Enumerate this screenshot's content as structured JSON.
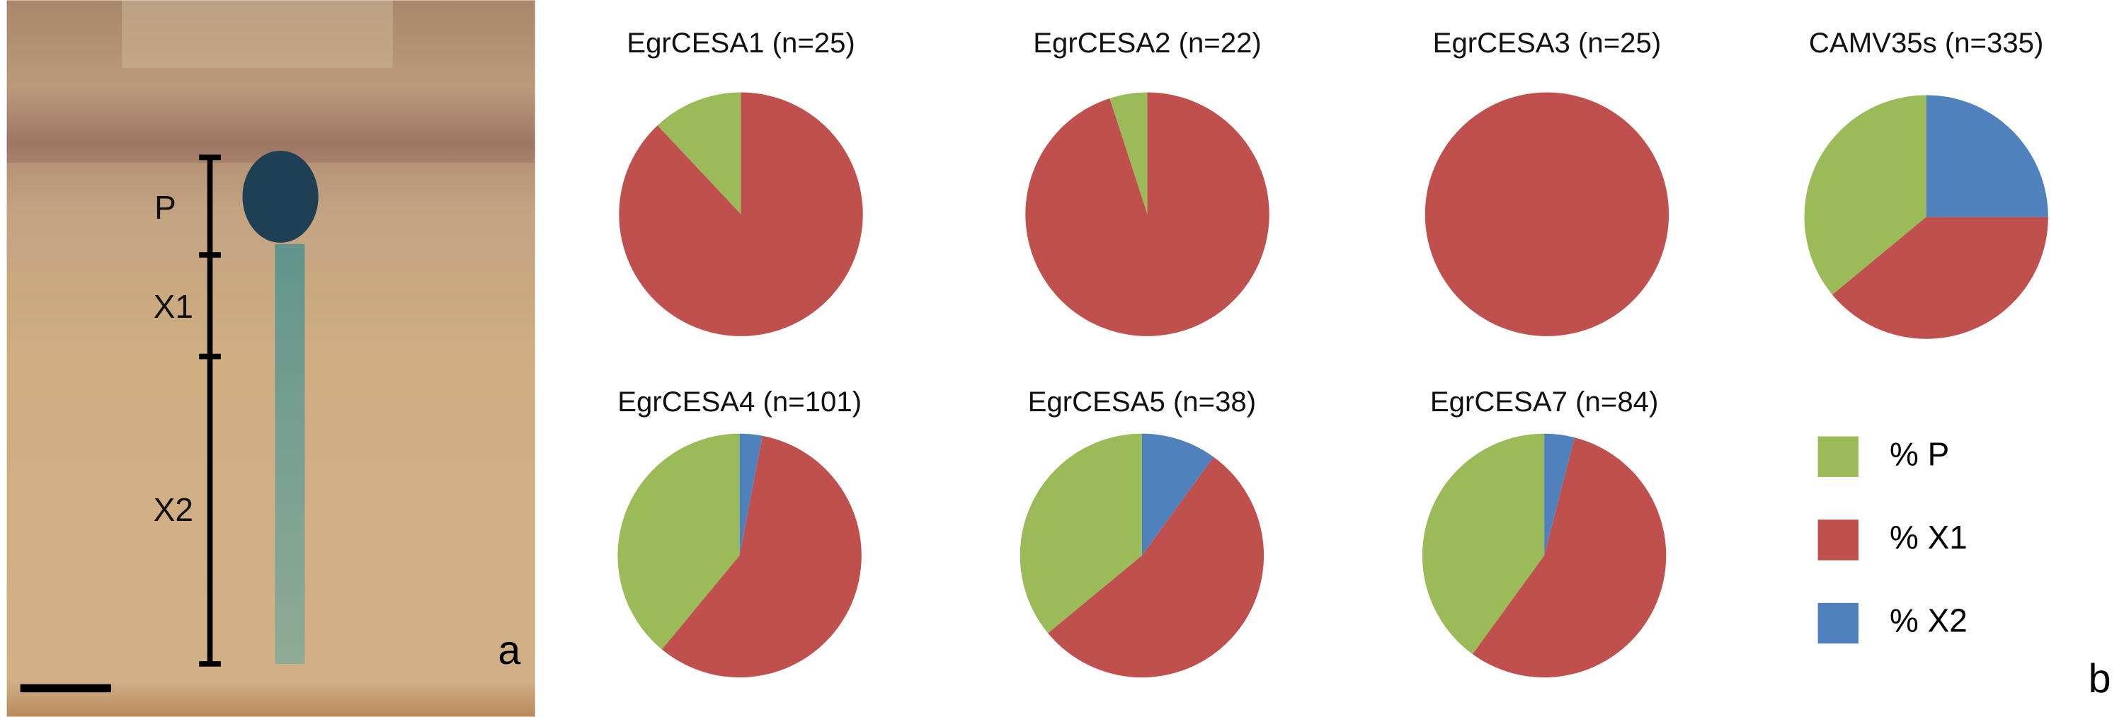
{
  "panel_a": {
    "zones": [
      "P",
      "X1",
      "X2"
    ],
    "label": "a"
  },
  "panel_b": {
    "label": "b"
  },
  "legend": {
    "labels": [
      "% P",
      "% X1",
      "% X2"
    ],
    "colors": [
      "#9bbb59",
      "#c0504d",
      "#4f81bd"
    ]
  },
  "chart_data": [
    {
      "type": "pie",
      "title": "EgrCESA1 (n=25)",
      "values": [
        12,
        88,
        0
      ]
    },
    {
      "type": "pie",
      "title": "EgrCESA2 (n=22)",
      "values": [
        5,
        95,
        0
      ]
    },
    {
      "type": "pie",
      "title": "EgrCESA3 (n=25)",
      "values": [
        0,
        100,
        0
      ]
    },
    {
      "type": "pie",
      "title": "CAMV35s (n=335)",
      "values": [
        36,
        39,
        25
      ]
    },
    {
      "type": "pie",
      "title": "EgrCESA4 (n=101)",
      "values": [
        39,
        58,
        3
      ]
    },
    {
      "type": "pie",
      "title": "EgrCESA5 (n=38)",
      "values": [
        36,
        54,
        10
      ]
    },
    {
      "type": "pie",
      "title": "EgrCESA7 (n=84)",
      "values": [
        40,
        56,
        4
      ]
    }
  ]
}
